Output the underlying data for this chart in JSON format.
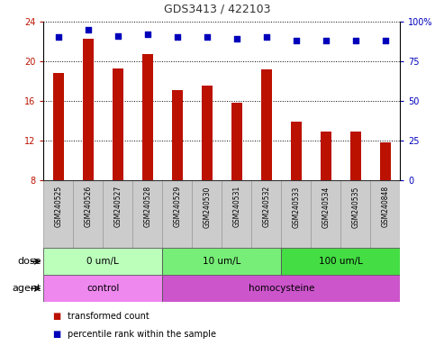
{
  "title": "GDS3413 / 422103",
  "samples": [
    "GSM240525",
    "GSM240526",
    "GSM240527",
    "GSM240528",
    "GSM240529",
    "GSM240530",
    "GSM240531",
    "GSM240532",
    "GSM240533",
    "GSM240534",
    "GSM240535",
    "GSM240848"
  ],
  "red_values": [
    18.8,
    22.3,
    19.3,
    20.7,
    17.1,
    17.5,
    15.8,
    19.2,
    13.9,
    12.9,
    12.9,
    11.8
  ],
  "blue_values": [
    90,
    95,
    91,
    92,
    90,
    90,
    89,
    90,
    88,
    88,
    88,
    88
  ],
  "ylim_left": [
    8,
    24
  ],
  "ylim_right": [
    0,
    100
  ],
  "yticks_left": [
    8,
    12,
    16,
    20,
    24
  ],
  "yticks_right": [
    0,
    25,
    50,
    75,
    100
  ],
  "right_tick_labels": [
    "0",
    "25",
    "50",
    "75",
    "100%"
  ],
  "dose_groups": [
    {
      "label": "0 um/L",
      "start": 0,
      "end": 4,
      "color": "#bbffbb"
    },
    {
      "label": "10 um/L",
      "start": 4,
      "end": 8,
      "color": "#77ee77"
    },
    {
      "label": "100 um/L",
      "start": 8,
      "end": 12,
      "color": "#44dd44"
    }
  ],
  "agent_groups": [
    {
      "label": "control",
      "start": 0,
      "end": 4,
      "color": "#ee88ee"
    },
    {
      "label": "homocysteine",
      "start": 4,
      "end": 12,
      "color": "#cc55cc"
    }
  ],
  "bar_color": "#bb1100",
  "dot_color": "#0000bb",
  "background_color": "#ffffff",
  "grid_color": "#000000",
  "sample_box_color": "#cccccc",
  "sample_box_edge": "#999999",
  "legend_items": [
    {
      "color": "#bb1100",
      "label": "transformed count"
    },
    {
      "color": "#0000bb",
      "label": "percentile rank within the sample"
    }
  ]
}
